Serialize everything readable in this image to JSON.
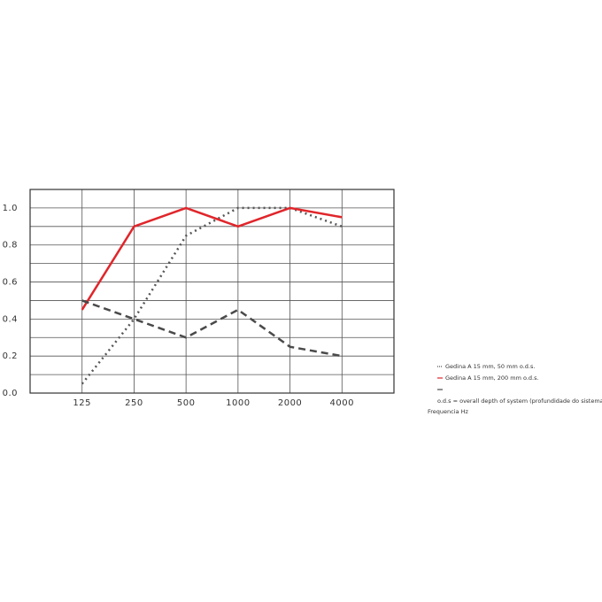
{
  "chart_data": {
    "type": "line",
    "categories": [
      "125",
      "250",
      "500",
      "1000",
      "2000",
      "4000"
    ],
    "x_label": "Frequencia Hz",
    "note": "o.d.s = overall depth of system (profundidade do sistema)",
    "ylim": [
      0,
      1.1
    ],
    "yticks": [
      {
        "value": 0,
        "label": "0.0"
      },
      0.2,
      0.4,
      0.6,
      0.8,
      {
        "value": 1,
        "label": "1.0"
      }
    ],
    "y_minor_ticks": [
      0.1,
      0.3,
      0.5,
      0.7,
      0.9
    ],
    "grid": true,
    "series": [
      {
        "name": "Gedina A 15 mm, 50 mm o.d.s.",
        "color": "#555555",
        "style": "dotted",
        "values": [
          0.05,
          0.4,
          0.85,
          1.0,
          1.0,
          0.9
        ]
      },
      {
        "name": "Gedina A 15 mm, 200 mm o.d.s.",
        "color": "#e0262b",
        "style": "solid",
        "values": [
          0.45,
          0.9,
          1.0,
          0.9,
          1.0,
          0.95
        ]
      },
      {
        "color": "#4a4a4a",
        "style": "dashed",
        "values": [
          0.5,
          0.4,
          0.3,
          0.45,
          0.25,
          0.2
        ]
      }
    ]
  }
}
